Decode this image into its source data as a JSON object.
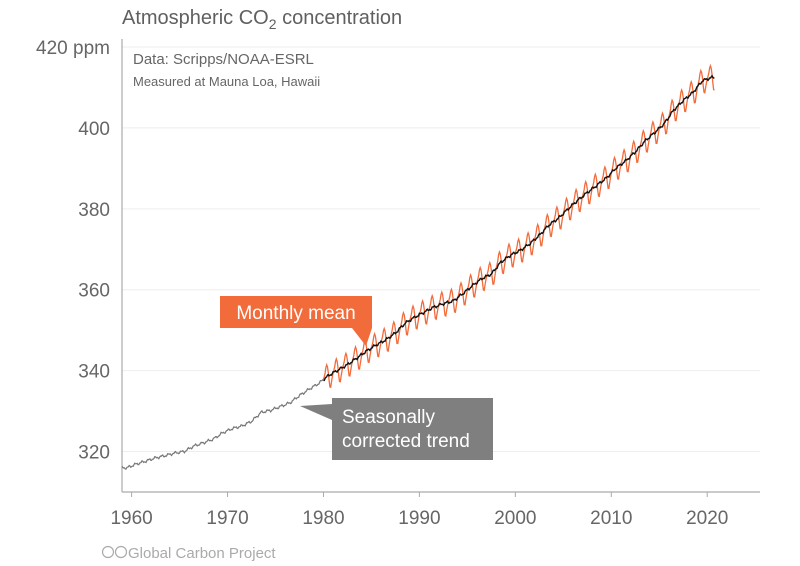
{
  "chart_data": {
    "type": "line",
    "title": "Atmospheric CO",
    "title_subscript": "2",
    "title_suffix": " concentration",
    "subtitle": "Data: Scripps/NOAA-ESRL",
    "note": "Measured at Mauna Loa, Hawaii",
    "xlim": [
      1959,
      2025.5
    ],
    "ylim": [
      310,
      420
    ],
    "x_ticks": [
      1960,
      1970,
      1980,
      1990,
      2000,
      2010,
      2020
    ],
    "y_ticks": [
      {
        "value": 320,
        "label": "320"
      },
      {
        "value": 340,
        "label": "340"
      },
      {
        "value": 360,
        "label": "360"
      },
      {
        "value": 380,
        "label": "380"
      },
      {
        "value": 400,
        "label": "400"
      },
      {
        "value": 420,
        "label": "420 ppm"
      }
    ],
    "grid": true,
    "colors": {
      "monthly": "#f26b3a",
      "trend_early": "#777777",
      "trend": "#111111",
      "trend_label_bg": "#7f7f7f",
      "monthly_label_bg": "#f26b3a"
    },
    "series": [
      {
        "name": "Seasonally corrected trend",
        "label_lines": [
          "Seasonally",
          "corrected trend"
        ],
        "years": [
          1959,
          1960,
          1961,
          1962,
          1963,
          1964,
          1965,
          1966,
          1967,
          1968,
          1969,
          1970,
          1971,
          1972,
          1973,
          1974,
          1975,
          1976,
          1977,
          1978,
          1979,
          1980,
          1981,
          1982,
          1983,
          1984,
          1985,
          1986,
          1987,
          1988,
          1989,
          1990,
          1991,
          1992,
          1993,
          1994,
          1995,
          1996,
          1997,
          1998,
          1999,
          2000,
          2001,
          2002,
          2003,
          2004,
          2005,
          2006,
          2007,
          2008,
          2009,
          2010,
          2011,
          2012,
          2013,
          2014,
          2015,
          2016,
          2017,
          2018,
          2019,
          2020
        ],
        "values": [
          315.98,
          316.91,
          317.64,
          318.45,
          318.99,
          319.62,
          320.04,
          321.37,
          322.18,
          323.05,
          324.62,
          325.68,
          326.32,
          327.46,
          329.68,
          330.19,
          331.13,
          332.03,
          333.84,
          335.41,
          336.84,
          338.76,
          340.12,
          341.48,
          343.15,
          344.85,
          346.35,
          347.61,
          349.31,
          351.69,
          353.2,
          354.45,
          355.7,
          356.54,
          357.21,
          358.96,
          360.97,
          362.74,
          363.88,
          366.84,
          368.54,
          369.71,
          371.32,
          373.45,
          375.98,
          377.7,
          379.98,
          382.09,
          384.02,
          385.83,
          387.64,
          390.1,
          391.85,
          394.06,
          396.74,
          398.81,
          401.01,
          404.41,
          406.76,
          408.72,
          411.66,
          412.5
        ]
      },
      {
        "name": "Monthly mean",
        "start_year": 1980,
        "seasonal_cycle_by_month": [
          0.0,
          0.6,
          1.3,
          2.5,
          3.0,
          2.3,
          0.8,
          -1.3,
          -3.0,
          -3.2,
          -2.0,
          -0.9
        ]
      }
    ]
  },
  "footer": {
    "credit": "Global Carbon Project",
    "license_icons": "cc-by-icons"
  }
}
